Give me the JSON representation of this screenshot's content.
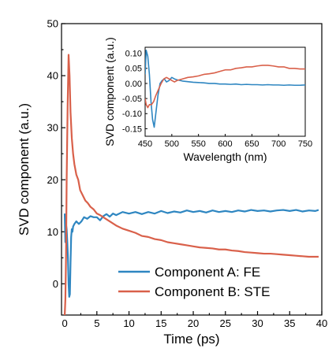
{
  "chart_data": [
    {
      "type": "line",
      "xlabel": "Time (ps)",
      "ylabel": "SVD component (a.u.)",
      "xlim": [
        -0.5,
        40
      ],
      "ylim": [
        -6,
        50
      ],
      "xticks": [
        "0",
        "5",
        "10",
        "15",
        "20",
        "25",
        "30",
        "35",
        "40"
      ],
      "yticks": [
        "0",
        "10",
        "20",
        "30",
        "40",
        "50"
      ],
      "grid": false,
      "legend_position": "lower-right",
      "colors": {
        "A": "#2e86c1",
        "B": "#d9604a"
      },
      "series": [
        {
          "name": "Component A: FE",
          "x": [
            0,
            0.1,
            0.2,
            0.3,
            0.4,
            0.5,
            0.6,
            0.7,
            0.8,
            0.9,
            1.0,
            1.1,
            1.2,
            1.3,
            1.5,
            1.8,
            2.2,
            2.6,
            3,
            3.5,
            4,
            4.5,
            5,
            5.5,
            6,
            6.5,
            7,
            7.5,
            8,
            9,
            10,
            11,
            12,
            13,
            14,
            15,
            16,
            17,
            18,
            19,
            20,
            21,
            22,
            23,
            24,
            25,
            26,
            27,
            28,
            29,
            30,
            31,
            32,
            33,
            34,
            35,
            36,
            37,
            38,
            39,
            39.5
          ],
          "y": [
            13.5,
            8,
            11.5,
            10.5,
            8,
            5,
            0,
            -2.5,
            -2,
            4,
            9,
            10.5,
            10,
            11,
            11.5,
            12,
            11.5,
            12,
            12.8,
            12.5,
            13,
            12.8,
            12.8,
            12.2,
            13,
            13.4,
            12.9,
            13.5,
            13.2,
            13.8,
            13.5,
            13.8,
            13.4,
            13.8,
            13.5,
            14.0,
            13.6,
            13.9,
            13.7,
            14.1,
            13.8,
            14.0,
            13.7,
            14.1,
            13.8,
            14.0,
            13.8,
            14.1,
            13.9,
            14.2,
            14.0,
            14.1,
            13.9,
            14.1,
            14.2,
            14.0,
            14.2,
            13.9,
            14.1,
            14.0,
            14.2
          ]
        },
        {
          "name": "Component B: STE",
          "x": [
            0,
            0.1,
            0.2,
            0.3,
            0.45,
            0.6,
            0.75,
            0.9,
            1.1,
            1.3,
            1.5,
            1.8,
            2.1,
            2.4,
            2.8,
            3.2,
            3.6,
            4,
            4.5,
            5,
            5.5,
            6,
            7,
            8,
            9,
            10,
            11,
            12,
            13,
            14,
            15,
            16,
            17,
            18,
            19,
            20,
            21,
            22,
            23,
            24,
            25,
            26,
            27,
            28,
            29,
            30,
            31,
            32,
            33,
            34,
            35,
            36,
            37,
            38,
            39,
            39.5
          ],
          "y": [
            -6,
            -3,
            5,
            20,
            34,
            44,
            40,
            33,
            28,
            25,
            23,
            21,
            20,
            18,
            17,
            16,
            15.5,
            14.8,
            14.3,
            13.5,
            13.2,
            12.8,
            12,
            11.2,
            10.6,
            10.2,
            9.8,
            9.2,
            9.0,
            8.6,
            8.4,
            8.0,
            7.8,
            7.6,
            7.4,
            7.2,
            7.0,
            6.9,
            6.8,
            6.6,
            6.6,
            6.4,
            6.3,
            6.1,
            6.0,
            5.9,
            5.8,
            5.8,
            5.7,
            5.6,
            5.5,
            5.4,
            5.3,
            5.2,
            5.2,
            5.2
          ]
        }
      ]
    },
    {
      "type": "line",
      "xlabel": "Wavelength (nm)",
      "ylabel": "SVD component (a.u.)",
      "xlim": [
        450,
        750
      ],
      "ylim": [
        -0.175,
        0.12
      ],
      "xticks": [
        "450",
        "500",
        "550",
        "600",
        "650",
        "700",
        "750"
      ],
      "yticks": [
        "0.10",
        "0.05",
        "0.00",
        "-0.05",
        "-0.10",
        "-0.15"
      ],
      "grid": false,
      "series": [
        {
          "x": [
            450,
            452,
            455,
            458,
            461,
            464,
            467,
            470,
            474,
            478,
            482,
            486,
            490,
            495,
            500,
            505,
            510,
            515,
            520,
            530,
            540,
            550,
            560,
            570,
            580,
            590,
            600,
            610,
            620,
            630,
            640,
            650,
            660,
            670,
            680,
            690,
            700,
            710,
            720,
            730,
            740,
            750
          ],
          "y": [
            0.03,
            0.11,
            0.09,
            0.03,
            -0.06,
            -0.12,
            -0.145,
            -0.1,
            -0.04,
            0.0,
            0.01,
            0.015,
            0.005,
            0.01,
            0.02,
            0.015,
            0.012,
            0.01,
            0.008,
            0.006,
            0.004,
            0.003,
            0.002,
            0.0,
            0.0,
            -0.002,
            -0.002,
            -0.003,
            -0.002,
            -0.004,
            -0.003,
            -0.004,
            -0.004,
            -0.005,
            -0.004,
            -0.005,
            -0.005,
            -0.006,
            -0.005,
            -0.006,
            -0.006,
            -0.005
          ]
        },
        {
          "x": [
            450,
            452,
            455,
            458,
            462,
            466,
            470,
            475,
            480,
            485,
            490,
            495,
            500,
            505,
            510,
            520,
            530,
            540,
            550,
            560,
            570,
            580,
            590,
            600,
            610,
            620,
            630,
            640,
            650,
            660,
            670,
            680,
            690,
            700,
            710,
            720,
            730,
            740,
            750
          ],
          "y": [
            -0.05,
            -0.07,
            -0.08,
            -0.07,
            -0.07,
            -0.06,
            -0.04,
            -0.02,
            0.0,
            0.015,
            0.02,
            0.015,
            0.01,
            0.005,
            0.01,
            0.015,
            0.02,
            0.022,
            0.025,
            0.03,
            0.032,
            0.035,
            0.04,
            0.045,
            0.045,
            0.05,
            0.052,
            0.055,
            0.055,
            0.058,
            0.06,
            0.06,
            0.058,
            0.055,
            0.055,
            0.05,
            0.05,
            0.048,
            0.048
          ]
        }
      ]
    }
  ]
}
